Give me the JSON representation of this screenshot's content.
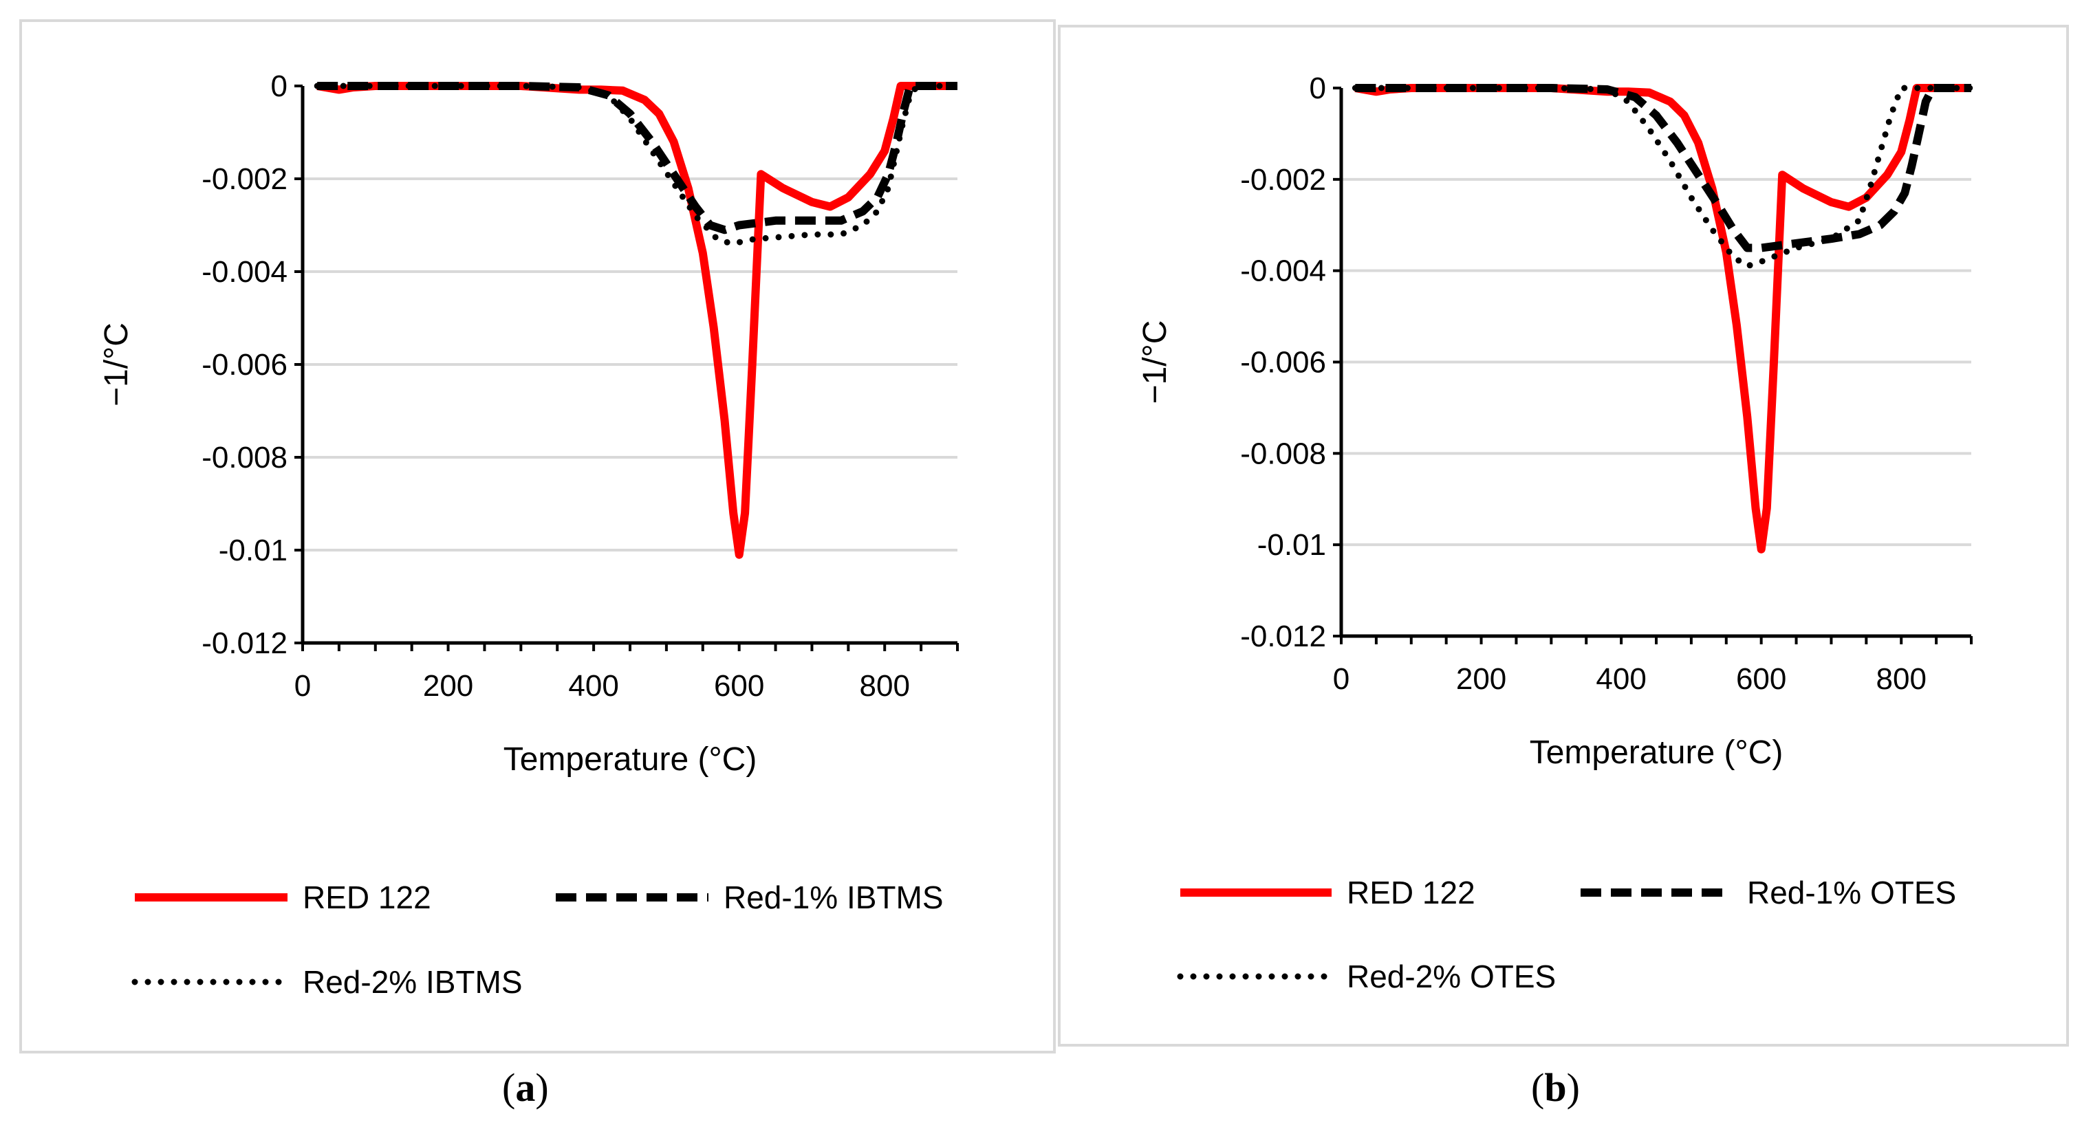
{
  "figure": {
    "panel_a_label": "a",
    "panel_b_label": "b"
  },
  "colors": {
    "red": "#ff0000",
    "black": "#000000",
    "grid": "#d9d9d9",
    "frame": "#d9d9d9"
  },
  "chart_data": [
    {
      "type": "line",
      "panel": "a",
      "title": "",
      "xlabel": "Temperature (°C)",
      "ylabel": "−1/°C",
      "xlim": [
        0,
        900
      ],
      "ylim": [
        -0.012,
        0
      ],
      "xticks": [
        0,
        200,
        400,
        600,
        800
      ],
      "yticks": [
        0,
        -0.002,
        -0.004,
        -0.006,
        -0.008,
        -0.01,
        -0.012
      ],
      "ytick_labels": [
        "0",
        "-0.002",
        "-0.004",
        "-0.006",
        "-0.008",
        "-0.01",
        "-0.012"
      ],
      "legend": {
        "placement": "bottom"
      },
      "series": [
        {
          "name": "RED 122",
          "style": "solid-red",
          "x": [
            20,
            50,
            70,
            100,
            200,
            300,
            380,
            410,
            440,
            470,
            490,
            510,
            530,
            550,
            565,
            580,
            592,
            600,
            608,
            618,
            630,
            660,
            700,
            725,
            750,
            780,
            800,
            812,
            822,
            900
          ],
          "y": [
            0,
            -8e-05,
            -3e-05,
            0,
            0,
            0,
            -8e-05,
            -8e-05,
            -0.0001,
            -0.0003,
            -0.0006,
            -0.0012,
            -0.0022,
            -0.0036,
            -0.0052,
            -0.0072,
            -0.0092,
            -0.0101,
            -0.0092,
            -0.006,
            -0.0019,
            -0.0022,
            -0.0025,
            -0.0026,
            -0.0024,
            -0.0019,
            -0.0014,
            -0.0007,
            0,
            0
          ]
        },
        {
          "name": "Red-1% IBTMS",
          "style": "dashed-black",
          "x": [
            20,
            100,
            200,
            300,
            380,
            420,
            450,
            480,
            510,
            540,
            560,
            580,
            600,
            650,
            700,
            740,
            770,
            790,
            805,
            815,
            825,
            835,
            900
          ],
          "y": [
            0,
            0,
            0,
            0,
            -3e-05,
            -0.0002,
            -0.0006,
            -0.0012,
            -0.0019,
            -0.0026,
            -0.003,
            -0.0031,
            -0.003,
            -0.0029,
            -0.0029,
            -0.0029,
            -0.0027,
            -0.0024,
            -0.0019,
            -0.0013,
            -0.0006,
            0,
            0
          ]
        },
        {
          "name": "Red-2% IBTMS",
          "style": "dotted-black",
          "x": [
            20,
            100,
            200,
            300,
            380,
            420,
            450,
            480,
            510,
            540,
            570,
            590,
            620,
            700,
            740,
            770,
            790,
            805,
            815,
            825,
            835,
            845,
            900
          ],
          "y": [
            0,
            0,
            0,
            0,
            -3e-05,
            -0.0002,
            -0.0007,
            -0.0014,
            -0.0021,
            -0.0028,
            -0.0033,
            -0.0034,
            -0.0033,
            -0.0032,
            -0.0032,
            -0.003,
            -0.0027,
            -0.0022,
            -0.0015,
            -0.0008,
            -0.0002,
            0,
            0
          ]
        }
      ]
    },
    {
      "type": "line",
      "panel": "b",
      "title": "",
      "xlabel": "Temperature (°C)",
      "ylabel": "−1/°C",
      "xlim": [
        0,
        900
      ],
      "ylim": [
        -0.012,
        0
      ],
      "xticks": [
        0,
        200,
        400,
        600,
        800
      ],
      "yticks": [
        0,
        -0.002,
        -0.004,
        -0.006,
        -0.008,
        -0.01,
        -0.012
      ],
      "ytick_labels": [
        "0",
        "-0.002",
        "-0.004",
        "-0.006",
        "-0.008",
        "-0.01",
        "-0.012"
      ],
      "legend": {
        "placement": "bottom"
      },
      "series": [
        {
          "name": "RED 122",
          "style": "solid-red",
          "x": [
            20,
            50,
            70,
            100,
            200,
            300,
            380,
            410,
            440,
            470,
            490,
            510,
            530,
            550,
            565,
            580,
            592,
            600,
            608,
            618,
            630,
            660,
            700,
            725,
            750,
            780,
            800,
            812,
            822,
            900
          ],
          "y": [
            0,
            -8e-05,
            -3e-05,
            0,
            0,
            0,
            -8e-05,
            -8e-05,
            -0.0001,
            -0.0003,
            -0.0006,
            -0.0012,
            -0.0022,
            -0.0036,
            -0.0052,
            -0.0072,
            -0.0092,
            -0.0101,
            -0.0092,
            -0.006,
            -0.0019,
            -0.0022,
            -0.0025,
            -0.0026,
            -0.0024,
            -0.0019,
            -0.0014,
            -0.0007,
            0,
            0
          ]
        },
        {
          "name": "Red-1% OTES",
          "style": "dashed-black",
          "x": [
            20,
            100,
            200,
            300,
            380,
            420,
            450,
            480,
            510,
            540,
            560,
            580,
            600,
            650,
            700,
            740,
            770,
            790,
            805,
            815,
            825,
            835,
            845,
            900
          ],
          "y": [
            0,
            0,
            0,
            0,
            -3e-05,
            -0.0002,
            -0.0006,
            -0.0012,
            -0.0019,
            -0.0026,
            -0.0031,
            -0.0035,
            -0.0035,
            -0.0034,
            -0.0033,
            -0.0032,
            -0.003,
            -0.0027,
            -0.0023,
            -0.0017,
            -0.001,
            -0.0003,
            0,
            0
          ]
        },
        {
          "name": "Red-2% OTES",
          "style": "dotted-black",
          "x": [
            20,
            100,
            200,
            300,
            380,
            410,
            440,
            470,
            500,
            530,
            560,
            580,
            600,
            650,
            700,
            740,
            755,
            770,
            785,
            800,
            900
          ],
          "y": [
            0,
            0,
            0,
            0,
            -3e-05,
            -0.0003,
            -0.0009,
            -0.0016,
            -0.0024,
            -0.0031,
            -0.0037,
            -0.0039,
            -0.0038,
            -0.0035,
            -0.0033,
            -0.0029,
            -0.0022,
            -0.0014,
            -0.0006,
            0,
            0
          ]
        }
      ]
    }
  ]
}
